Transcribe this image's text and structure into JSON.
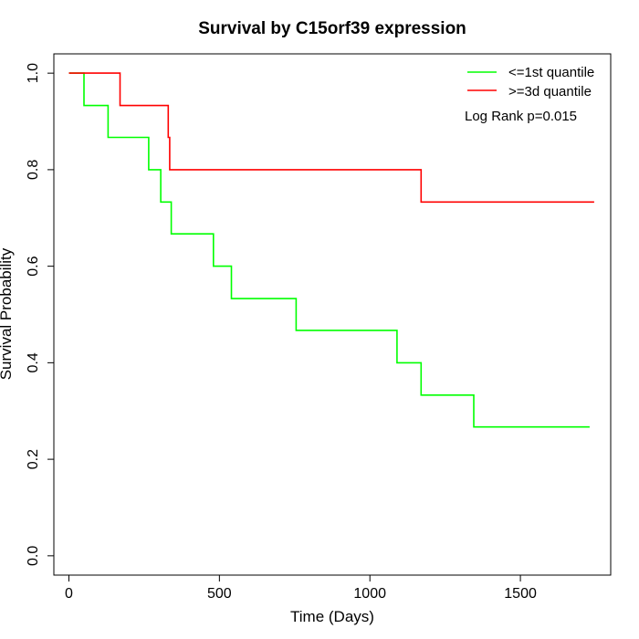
{
  "chart_data": {
    "type": "line",
    "step": true,
    "title": "Survival by C15orf39 expression",
    "xlabel": "Time (Days)",
    "ylabel": "Survival Probability",
    "xlim": [
      -50,
      1800
    ],
    "ylim": [
      -0.04,
      1.04
    ],
    "x_ticks": [
      0,
      500,
      1000,
      1500
    ],
    "y_ticks": [
      0.0,
      0.2,
      0.4,
      0.6,
      0.8,
      1.0
    ],
    "y_tick_labels": [
      "0.0",
      "0.2",
      "0.4",
      "0.6",
      "0.8",
      "1.0"
    ],
    "grid": false,
    "legend_position": "top-right",
    "annotation": "Log Rank p=0.015",
    "series": [
      {
        "name": "<=1st quantile",
        "color": "#00ff00",
        "x": [
          0,
          50,
          130,
          265,
          305,
          340,
          480,
          540,
          755,
          1090,
          1170,
          1345,
          1730
        ],
        "y": [
          1.0,
          0.933,
          0.867,
          0.8,
          0.733,
          0.667,
          0.6,
          0.533,
          0.467,
          0.4,
          0.333,
          0.267,
          0.267
        ]
      },
      {
        "name": ">=3d quantile",
        "color": "#ff0000",
        "x": [
          0,
          170,
          330,
          335,
          1170,
          1745
        ],
        "y": [
          1.0,
          0.933,
          0.867,
          0.8,
          0.733,
          0.733
        ]
      }
    ]
  }
}
